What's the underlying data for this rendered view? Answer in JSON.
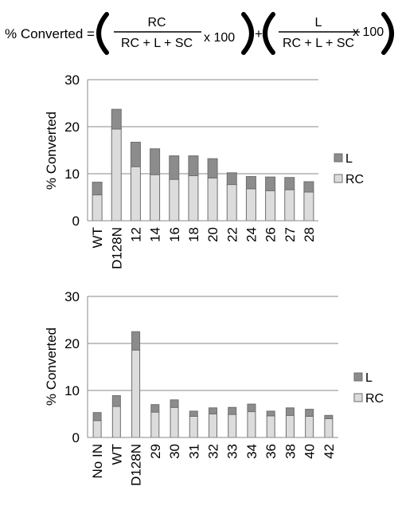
{
  "formula": {
    "lhs": "% Converted =",
    "term1_numerator": "RC",
    "term1_denominator": "RC + L + SC",
    "term1_factor": "x 100",
    "plus": "+",
    "term2_numerator": "L",
    "term2_denominator": "RC + L + SC",
    "term2_factor": "x 100"
  },
  "colors": {
    "L": "#8c8c8c",
    "RC": "#dcdcdc",
    "outline": "#6e6e6e",
    "grid": "#8a8a8a"
  },
  "chart_data": [
    {
      "type": "bar",
      "stacked": true,
      "categories": [
        "WT",
        "D128N",
        "12",
        "14",
        "16",
        "18",
        "20",
        "22",
        "24",
        "26",
        "27",
        "28"
      ],
      "series": [
        {
          "name": "RC",
          "values": [
            5.5,
            19.5,
            11.5,
            9.8,
            8.8,
            9.6,
            9.1,
            7.7,
            6.8,
            6.4,
            6.6,
            6.1
          ]
        },
        {
          "name": "L",
          "values": [
            2.7,
            4.2,
            5.2,
            5.5,
            5.0,
            4.2,
            4.1,
            2.5,
            2.6,
            2.9,
            2.6,
            2.2
          ]
        }
      ],
      "ylabel": "% Converted",
      "ylim": [
        0,
        30
      ],
      "yticks": [
        0,
        10,
        20,
        30
      ],
      "grid": true,
      "legend": "right"
    },
    {
      "type": "bar",
      "stacked": true,
      "categories": [
        "No IN",
        "WT",
        "D128N",
        "29",
        "30",
        "31",
        "32",
        "33",
        "34",
        "36",
        "38",
        "40",
        "42"
      ],
      "series": [
        {
          "name": "RC",
          "values": [
            3.6,
            6.6,
            18.6,
            5.4,
            6.4,
            4.5,
            5.0,
            4.9,
            5.5,
            4.6,
            4.7,
            4.5,
            4.0
          ]
        },
        {
          "name": "L",
          "values": [
            1.7,
            2.3,
            3.9,
            1.6,
            1.6,
            1.1,
            1.3,
            1.5,
            1.6,
            1.0,
            1.6,
            1.5,
            0.7
          ]
        }
      ],
      "ylabel": "% Converted",
      "ylim": [
        0,
        30
      ],
      "yticks": [
        0,
        10,
        20,
        30
      ],
      "grid": true,
      "legend": "right"
    }
  ]
}
